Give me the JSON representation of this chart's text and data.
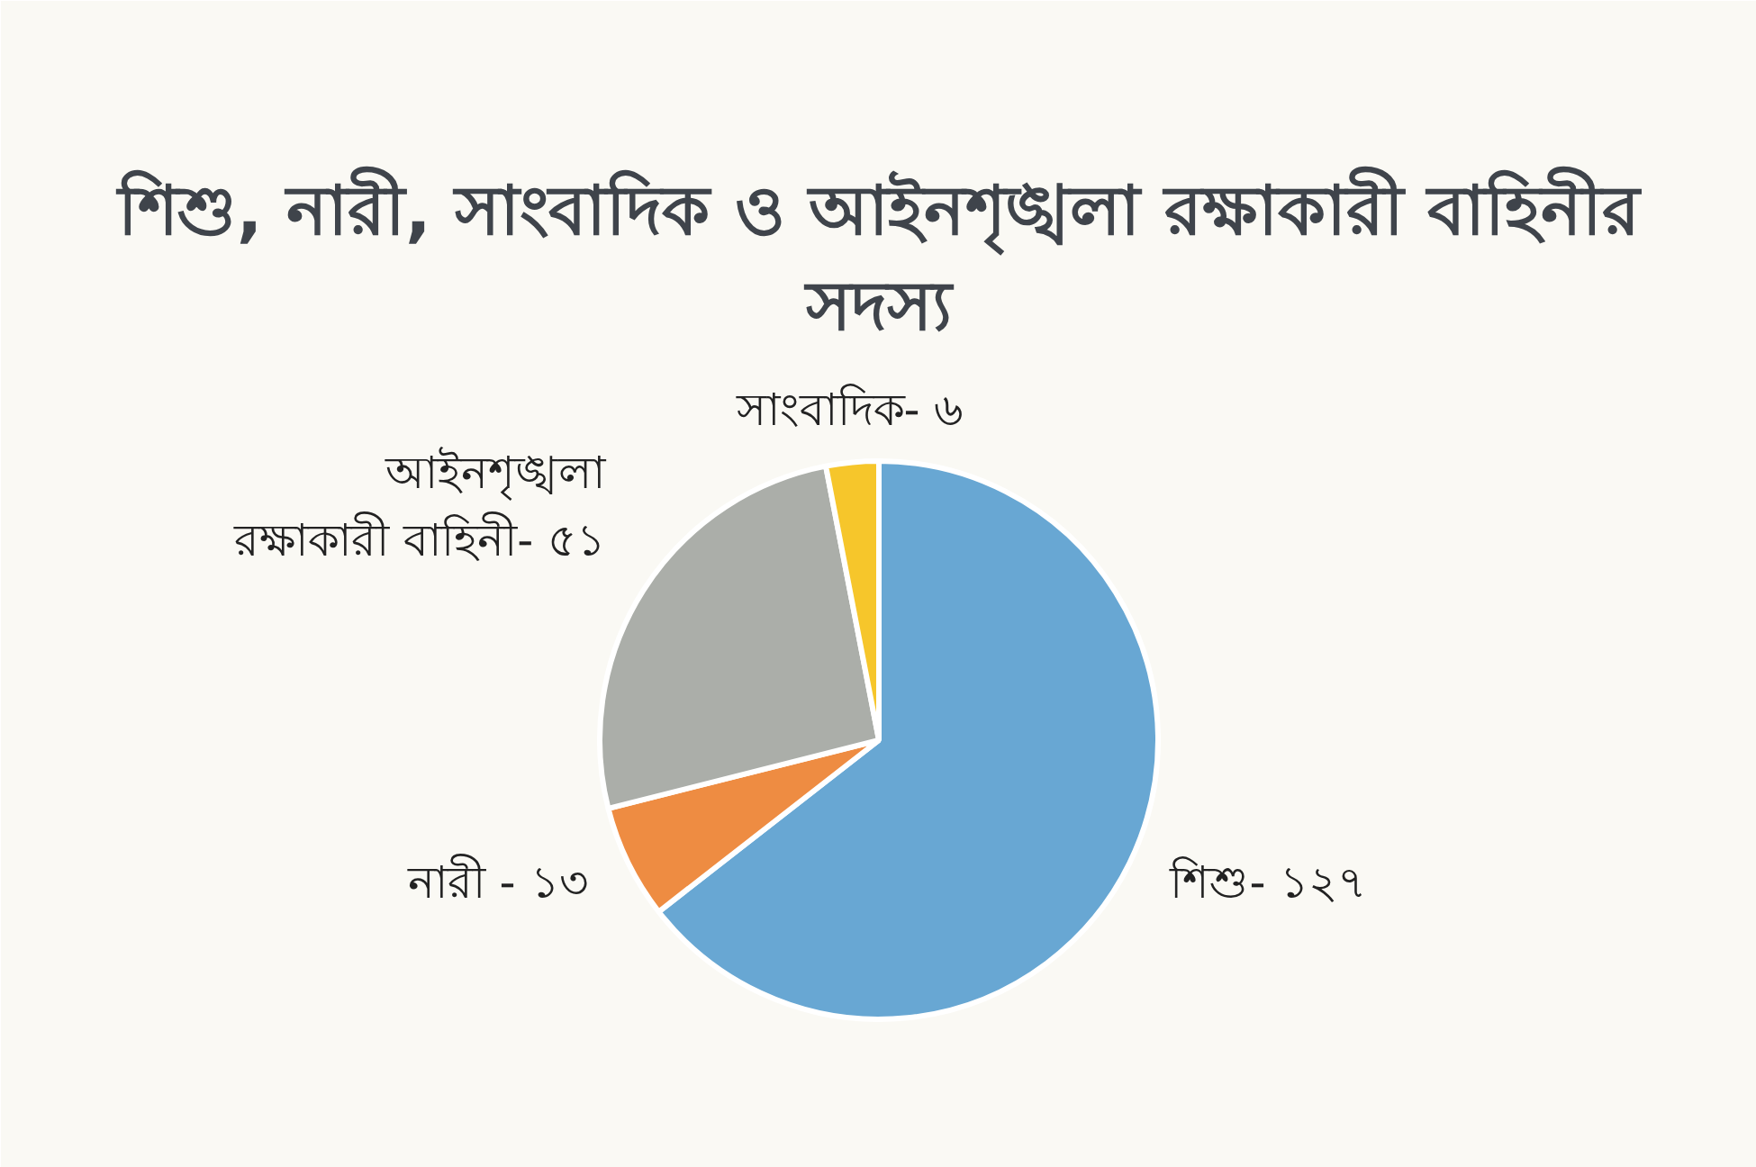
{
  "chart_data": {
    "type": "pie",
    "title": "শিশু, নারী, সাংবাদিক ও আইনশৃঙ্খলা রক্ষাকারী বাহিনীর সদস্য",
    "categories": [
      "শিশু-",
      "নারী -",
      "আইনশৃঙ্খলা রক্ষাকারী বাহিনী-",
      "সাংবাদিক-"
    ],
    "values": [
      127,
      13,
      51,
      6
    ],
    "value_labels": [
      "১২৭",
      "১৩",
      "৫১",
      "৬"
    ],
    "colors": [
      "#68a7d3",
      "#ee8c42",
      "#abaea9",
      "#f6c62b"
    ]
  }
}
